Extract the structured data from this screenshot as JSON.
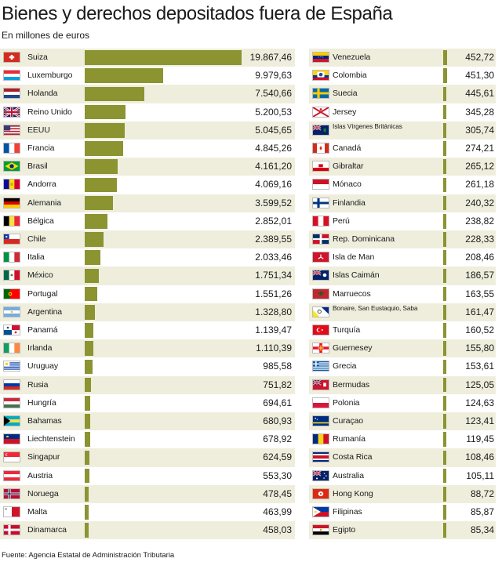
{
  "chart_data": {
    "type": "bar",
    "title": "Bienes y derechos depositados fuera de España",
    "subtitle": "En millones de euros",
    "source": "Fuente: Agencia Estatal de Administración Tributaria",
    "bar_color": "#8b9431",
    "row_alt_color": "#efeedd",
    "xlim": [
      0,
      19867.46
    ],
    "series": [
      {
        "columns": "left",
        "categories": [
          "Suiza",
          "Luxemburgo",
          "Holanda",
          "Reino Unido",
          "EEUU",
          "Francia",
          "Brasil",
          "Andorra",
          "Alemania",
          "Bélgica",
          "Chile",
          "Italia",
          "México",
          "Portugal",
          "Argentina",
          "Panamá",
          "Irlanda",
          "Uruguay",
          "Rusia",
          "Hungría",
          "Bahamas",
          "Liechtenstein",
          "Singapur",
          "Austria",
          "Noruega",
          "Malta",
          "Dinamarca"
        ],
        "values": [
          19867.46,
          9979.63,
          7540.66,
          5200.53,
          5045.65,
          4845.26,
          4161.2,
          4069.16,
          3599.52,
          2852.01,
          2389.55,
          2033.46,
          1751.34,
          1551.26,
          1328.8,
          1139.47,
          1110.39,
          985.58,
          751.82,
          694.61,
          680.93,
          678.92,
          624.59,
          553.3,
          478.45,
          463.99,
          458.03
        ],
        "labels": [
          "19.867,46",
          "9.979,63",
          "7.540,66",
          "5.200,53",
          "5.045,65",
          "4.845,26",
          "4.161,20",
          "4.069,16",
          "3.599,52",
          "2.852,01",
          "2.389,55",
          "2.033,46",
          "1.751,34",
          "1.551,26",
          "1.328,80",
          "1.139,47",
          "1.110,39",
          "985,58",
          "751,82",
          "694,61",
          "680,93",
          "678,92",
          "624,59",
          "553,30",
          "478,45",
          "463,99",
          "458,03"
        ],
        "flags": [
          "switzerland",
          "luxembourg",
          "netherlands",
          "united-kingdom",
          "usa",
          "france",
          "brazil",
          "andorra",
          "germany",
          "belgium",
          "chile",
          "italy",
          "mexico",
          "portugal",
          "argentina",
          "panama",
          "ireland",
          "uruguay",
          "russia",
          "hungary",
          "bahamas",
          "liechtenstein",
          "singapore",
          "austria",
          "norway",
          "malta",
          "denmark"
        ]
      },
      {
        "columns": "right",
        "categories": [
          "Venezuela",
          "Colombia",
          "Suecia",
          "Jersey",
          "Islas Vírgenes Británicas",
          "Canadá",
          "Gibraltar",
          "Mónaco",
          "Finlandia",
          "Perú",
          "Rep. Dominicana",
          "Isla de Man",
          "Islas Caimán",
          "Marruecos",
          "Bonaire, San Eustaquio, Saba",
          "Turquía",
          "Guernesey",
          "Grecia",
          "Bermudas",
          "Polonia",
          "Curaçao",
          "Rumanía",
          "Costa Rica",
          "Australia",
          "Hong Kong",
          "Filipinas",
          "Egipto"
        ],
        "values": [
          452.72,
          451.3,
          445.61,
          345.28,
          305.74,
          274.21,
          265.12,
          261.18,
          240.32,
          238.82,
          228.33,
          208.46,
          186.57,
          163.55,
          161.47,
          160.52,
          155.8,
          153.61,
          125.05,
          124.63,
          123.41,
          119.45,
          108.46,
          105.11,
          88.72,
          85.87,
          85.34
        ],
        "labels": [
          "452,72",
          "451,30",
          "445,61",
          "345,28",
          "305,74",
          "274,21",
          "265,12",
          "261,18",
          "240,32",
          "238,82",
          "228,33",
          "208,46",
          "186,57",
          "163,55",
          "161,47",
          "160,52",
          "155,80",
          "153,61",
          "125,05",
          "124,63",
          "123,41",
          "119,45",
          "108,46",
          "105,11",
          "88,72",
          "85,87",
          "85,34"
        ],
        "flags": [
          "venezuela",
          "colombia",
          "sweden",
          "jersey",
          "british-virgin-islands",
          "canada",
          "gibraltar",
          "monaco",
          "finland",
          "peru",
          "dominican-republic",
          "isle-of-man",
          "cayman-islands",
          "morocco",
          "bonaire",
          "turkey",
          "guernsey",
          "greece",
          "bermuda",
          "poland",
          "curacao",
          "romania",
          "costa-rica",
          "australia",
          "hong-kong",
          "philippines",
          "egypt"
        ]
      }
    ]
  }
}
